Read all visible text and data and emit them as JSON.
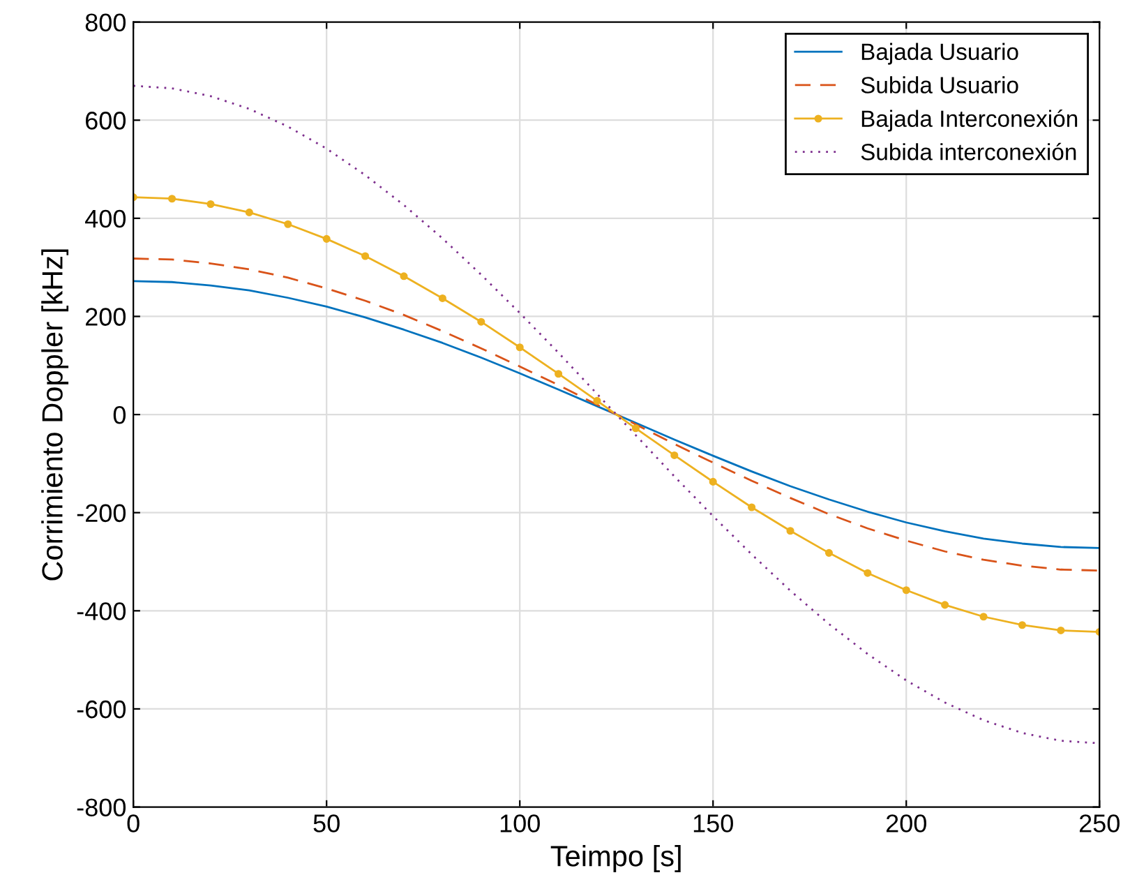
{
  "chart_data": {
    "type": "line",
    "xlabel": "Teimpo [s]",
    "ylabel": "Corrimiento Doppler [kHz]",
    "x": [
      0,
      10,
      20,
      30,
      40,
      50,
      60,
      70,
      80,
      90,
      100,
      110,
      120,
      130,
      140,
      150,
      160,
      170,
      180,
      190,
      200,
      210,
      220,
      230,
      240,
      250
    ],
    "series": [
      {
        "name": "Bajada Usuario",
        "color": "#0072bd",
        "line_style": "solid",
        "marker": "none",
        "values": [
          272,
          270,
          263,
          253,
          238,
          220,
          198,
          173,
          146,
          116,
          84,
          51,
          17,
          -17,
          -51,
          -84,
          -116,
          -146,
          -173,
          -198,
          -220,
          -238,
          -253,
          -263,
          -270,
          -272
        ]
      },
      {
        "name": "Subida Usuario",
        "color": "#d95319",
        "line_style": "dashed",
        "marker": "none",
        "values": [
          318,
          316,
          308,
          296,
          279,
          257,
          232,
          203,
          170,
          135,
          98,
          60,
          20,
          -20,
          -60,
          -98,
          -135,
          -170,
          -203,
          -232,
          -257,
          -279,
          -296,
          -308,
          -316,
          -318
        ]
      },
      {
        "name": "Bajada Interconexión",
        "color": "#edb120",
        "line_style": "solid",
        "marker": "circle",
        "values": [
          443,
          440,
          429,
          412,
          388,
          358,
          323,
          282,
          237,
          189,
          137,
          83,
          28,
          -28,
          -83,
          -137,
          -189,
          -237,
          -282,
          -323,
          -358,
          -388,
          -412,
          -429,
          -440,
          -443
        ]
      },
      {
        "name": "Subida interconexión",
        "color": "#7e2f8e",
        "line_style": "dotted",
        "marker": "none",
        "values": [
          670,
          665,
          649,
          623,
          587,
          542,
          488,
          427,
          359,
          285,
          207,
          126,
          42,
          -42,
          -126,
          -207,
          -285,
          -359,
          -427,
          -488,
          -542,
          -587,
          -623,
          -649,
          -665,
          -670
        ]
      }
    ],
    "xlim": [
      0,
      250
    ],
    "xticks": [
      0,
      50,
      100,
      150,
      200,
      250
    ],
    "ylim": [
      -800,
      800
    ],
    "yticks": [
      -800,
      -600,
      -400,
      -200,
      0,
      200,
      400,
      600,
      800
    ],
    "grid": true,
    "legend": "top right"
  }
}
